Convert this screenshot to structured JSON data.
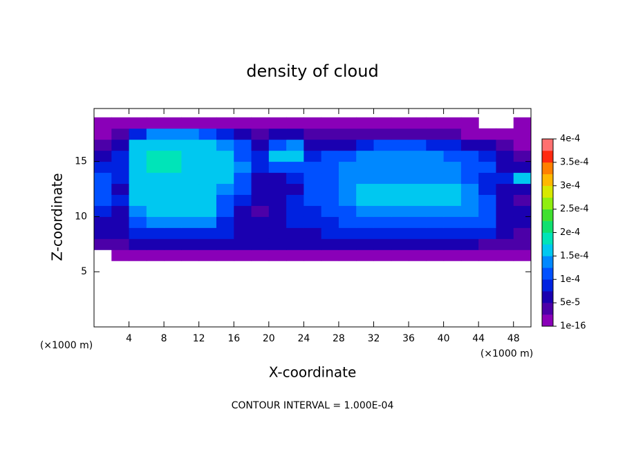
{
  "chart_data": {
    "type": "contour",
    "title": "density of cloud",
    "x_label": "X-coordinate",
    "y_label": "Z-coordinate",
    "x_unit": "(×1000 m)",
    "y_unit": "(×1000 m)",
    "footnote": "CONTOUR INTERVAL = 1.000E-04",
    "xlim": [
      0,
      50
    ],
    "ylim": [
      0,
      19.8
    ],
    "xticks": [
      4,
      8,
      12,
      16,
      20,
      24,
      28,
      32,
      36,
      40,
      44,
      48
    ],
    "yticks": [
      5,
      10,
      15
    ],
    "x": [
      1,
      3,
      5,
      7,
      9,
      11,
      13,
      15,
      17,
      19,
      21,
      23,
      25,
      27,
      29,
      31,
      33,
      35,
      37,
      39,
      41,
      43,
      45,
      47,
      49
    ],
    "y": [
      6.5,
      7.5,
      8.5,
      9.5,
      10.5,
      11.5,
      12.5,
      13.5,
      14.5,
      15.5,
      16.5,
      17.5,
      18.5
    ],
    "cell_width": 2,
    "cell_height": 1,
    "z": [
      [
        null,
        2e-05,
        2e-05,
        2e-05,
        2e-05,
        2e-05,
        2e-05,
        2e-05,
        2e-05,
        2e-05,
        2e-05,
        2e-05,
        2e-05,
        2e-05,
        2e-05,
        2e-05,
        2e-05,
        2e-05,
        2e-05,
        2e-05,
        2e-05,
        2e-05,
        2e-05,
        2e-05,
        2e-05
      ],
      [
        3e-05,
        4e-05,
        5e-05,
        5e-05,
        5e-05,
        5e-05,
        5e-05,
        5e-05,
        5e-05,
        5e-05,
        5e-05,
        5e-05,
        5e-05,
        5e-05,
        5e-05,
        5e-05,
        5e-05,
        5e-05,
        5e-05,
        5e-05,
        5e-05,
        5e-05,
        4e-05,
        3e-05,
        3e-05
      ],
      [
        5e-05,
        5e-05,
        8e-05,
        9e-05,
        9e-05,
        9e-05,
        9e-05,
        8e-05,
        6e-05,
        6e-05,
        6e-05,
        7e-05,
        7e-05,
        8e-05,
        8e-05,
        8e-05,
        8e-05,
        9e-05,
        9e-05,
        9e-05,
        9e-05,
        9e-05,
        8e-05,
        6e-05,
        4e-05
      ],
      [
        6e-05,
        6e-05,
        0.00011,
        0.00013,
        0.00013,
        0.00013,
        0.00013,
        9e-05,
        5e-05,
        5e-05,
        6e-05,
        8e-05,
        8e-05,
        9e-05,
        0.0001,
        0.00011,
        0.00011,
        0.00012,
        0.00012,
        0.00012,
        0.00012,
        0.00011,
        0.0001,
        7e-05,
        5e-05
      ],
      [
        8e-05,
        7e-05,
        0.00013,
        0.00015,
        0.00015,
        0.00015,
        0.00015,
        0.0001,
        6e-05,
        4e-05,
        6e-05,
        8e-05,
        9e-05,
        0.0001,
        0.00012,
        0.00013,
        0.00014,
        0.00014,
        0.00014,
        0.00014,
        0.00014,
        0.00013,
        0.00011,
        7e-05,
        5e-05
      ],
      [
        0.0001,
        8e-05,
        0.00015,
        0.00017,
        0.00017,
        0.00016,
        0.00016,
        0.00012,
        8e-05,
        5e-05,
        7e-05,
        9e-05,
        0.0001,
        0.00012,
        0.00013,
        0.00016,
        0.00016,
        0.00016,
        0.00016,
        0.00016,
        0.00015,
        0.00013,
        0.0001,
        6e-05,
        4e-05
      ],
      [
        0.00012,
        7e-05,
        0.00016,
        0.00017,
        0.00017,
        0.00017,
        0.00016,
        0.00014,
        0.0001,
        6e-05,
        5e-05,
        7e-05,
        0.0001,
        0.00012,
        0.00014,
        0.00016,
        0.00016,
        0.00016,
        0.00016,
        0.00016,
        0.00015,
        0.00013,
        9e-05,
        6e-05,
        6e-05
      ],
      [
        0.00011,
        8e-05,
        0.00016,
        0.00017,
        0.00017,
        0.00017,
        0.00016,
        0.00015,
        0.00012,
        7e-05,
        6e-05,
        8e-05,
        0.00011,
        0.00012,
        0.00013,
        0.00014,
        0.00014,
        0.00014,
        0.00014,
        0.00014,
        0.00013,
        0.00012,
        9e-05,
        8e-05,
        0.00015
      ],
      [
        9e-05,
        9e-05,
        0.00016,
        0.00018,
        0.00018,
        0.00017,
        0.00016,
        0.00015,
        0.00013,
        8e-05,
        0.0001,
        0.0001,
        0.0001,
        0.00012,
        0.00013,
        0.00013,
        0.00014,
        0.00014,
        0.00014,
        0.00014,
        0.00013,
        0.00012,
        0.0001,
        7e-05,
        6e-05
      ],
      [
        7e-05,
        8e-05,
        0.00016,
        0.00018,
        0.00018,
        0.00017,
        0.00016,
        0.00015,
        0.00012,
        9e-05,
        0.00015,
        0.00015,
        9e-05,
        0.0001,
        0.00012,
        0.00013,
        0.00013,
        0.00014,
        0.00014,
        0.00013,
        0.00012,
        0.0001,
        8e-05,
        5e-05,
        4e-05
      ],
      [
        4e-05,
        6e-05,
        0.00015,
        0.00017,
        0.00017,
        0.00016,
        0.00015,
        0.00013,
        0.0001,
        7e-05,
        0.00012,
        0.00014,
        6e-05,
        5e-05,
        6e-05,
        8e-05,
        0.0001,
        0.0001,
        0.0001,
        9e-05,
        9e-05,
        7e-05,
        5e-05,
        3e-05,
        2e-05
      ],
      [
        2e-05,
        3e-05,
        8e-05,
        0.00013,
        0.00014,
        0.00014,
        0.00012,
        8e-05,
        5e-05,
        4e-05,
        6e-05,
        5e-05,
        3e-05,
        3e-05,
        3e-05,
        3e-05,
        3e-05,
        3e-05,
        3e-05,
        3e-05,
        3e-05,
        2e-05,
        2e-05,
        2e-05,
        2e-05
      ],
      [
        2e-05,
        2e-05,
        2e-05,
        2e-05,
        2e-05,
        2e-05,
        2e-05,
        2e-05,
        2e-05,
        2e-05,
        2e-05,
        2e-05,
        2e-05,
        2e-05,
        2e-05,
        2e-05,
        2e-05,
        2e-05,
        2e-05,
        2e-05,
        2e-05,
        2e-05,
        null,
        null,
        2e-05
      ]
    ],
    "levels": [
      1e-16,
      2.5e-05,
      5e-05,
      7.5e-05,
      0.0001,
      0.000125,
      0.00015,
      0.000175,
      0.0002,
      0.000225,
      0.00025,
      0.000275,
      0.0003,
      0.000325,
      0.00035,
      0.000375,
      0.0004
    ],
    "colors": [
      "#8a00b8",
      "#4c00a8",
      "#1a00b0",
      "#0022e0",
      "#0050ff",
      "#0088ff",
      "#00c8f0",
      "#00e4b8",
      "#10e070",
      "#40e030",
      "#90ee10",
      "#d8e800",
      "#ffb800",
      "#ff8000",
      "#ff2a10",
      "#ff7070"
    ],
    "colorbar_ticks": [
      {
        "value": 1e-16,
        "label": "1e-16"
      },
      {
        "value": 5e-05,
        "label": "5e-5"
      },
      {
        "value": 0.0001,
        "label": "1e-4"
      },
      {
        "value": 0.00015,
        "label": "1.5e-4"
      },
      {
        "value": 0.0002,
        "label": "2e-4"
      },
      {
        "value": 0.00025,
        "label": "2.5e-4"
      },
      {
        "value": 0.0003,
        "label": "3e-4"
      },
      {
        "value": 0.00035,
        "label": "3.5e-4"
      },
      {
        "value": 0.0004,
        "label": "4e-4"
      }
    ]
  }
}
